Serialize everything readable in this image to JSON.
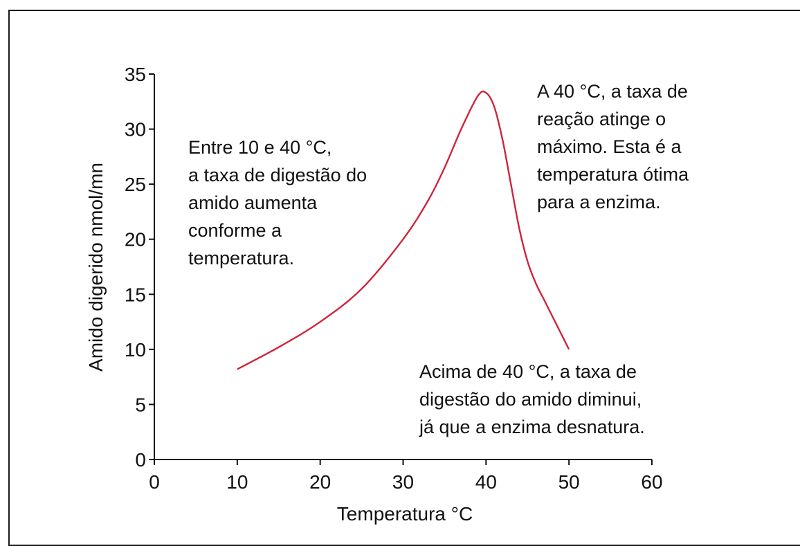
{
  "chart_data": {
    "type": "line",
    "xlabel": "Temperatura °C",
    "ylabel": "Amido digerido nmol/mn",
    "xlim": [
      0,
      60
    ],
    "ylim": [
      0,
      35
    ],
    "xticks": [
      0,
      10,
      20,
      30,
      40,
      50,
      60
    ],
    "yticks": [
      0,
      5,
      10,
      15,
      20,
      25,
      30,
      35
    ],
    "line_color": "#d0243a",
    "series": [
      {
        "x": [
          10,
          15,
          20,
          25,
          30,
          33,
          35,
          37,
          39,
          40,
          41,
          42,
          43,
          44,
          45,
          46,
          47,
          48,
          49,
          50
        ],
        "y": [
          8.2,
          10.2,
          12.5,
          15.5,
          20.0,
          23.5,
          26.5,
          30.0,
          33.0,
          33.3,
          32.0,
          29.0,
          25.0,
          21.0,
          18.0,
          16.0,
          14.5,
          13.0,
          11.5,
          10.0
        ]
      }
    ],
    "annotations": [
      {
        "id": "left",
        "lines": [
          "Entre 10 e 40 °C,",
          "a taxa de digestão do",
          "amido aumenta",
          "conforme a",
          "temperatura."
        ]
      },
      {
        "id": "top-right",
        "lines": [
          "A 40 °C, a taxa de",
          "reação atinge o",
          "máximo. Esta é a",
          "temperatura ótima",
          "para a enzima."
        ]
      },
      {
        "id": "bottom-right",
        "lines": [
          "Acima de 40 °C, a taxa de",
          "digestão do amido diminui,",
          "já que a enzima desnatura."
        ]
      }
    ]
  }
}
